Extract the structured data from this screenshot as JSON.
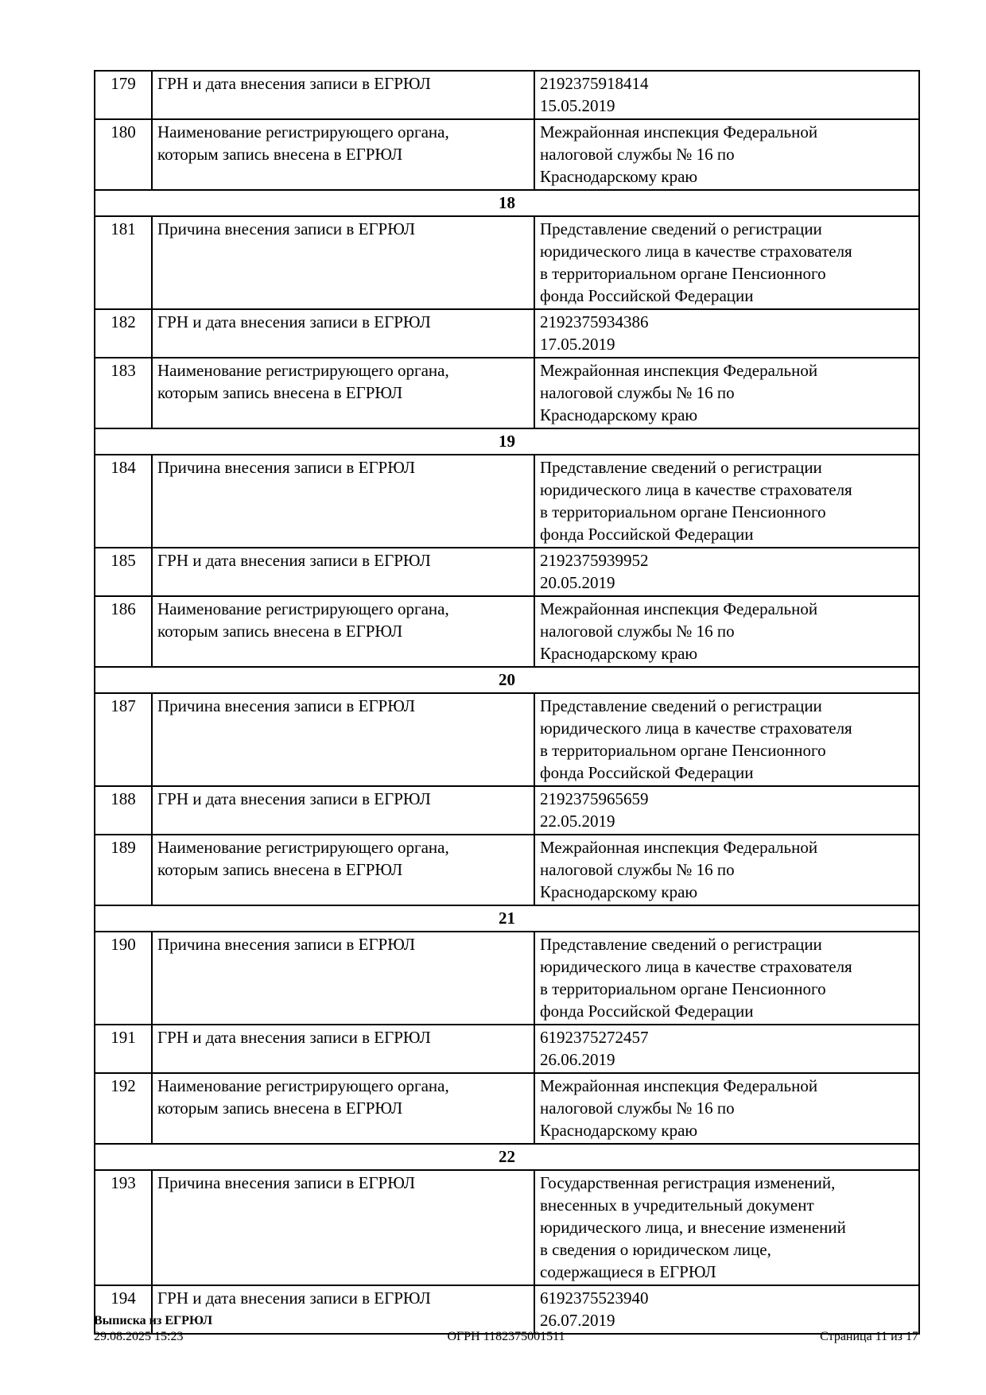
{
  "page": {
    "background_color": "#ffffff",
    "text_color": "#000000",
    "border_color": "#000000"
  },
  "table": {
    "rows": [
      {
        "type": "data",
        "num": "179",
        "label": "ГРН и дата внесения записи в ЕГРЮЛ",
        "value": "2192375918414\n15.05.2019"
      },
      {
        "type": "data",
        "num": "180",
        "label": "Наименование регистрирующего органа,\nкоторым запись внесена в ЕГРЮЛ",
        "value": "Межрайонная инспекция Федеральной\nналоговой службы № 16 по\nКраснодарскому краю"
      },
      {
        "type": "section",
        "label": "18"
      },
      {
        "type": "data",
        "num": "181",
        "label": "Причина внесения записи в ЕГРЮЛ",
        "value": "Представление сведений о регистрации\nюридического лица в качестве страхователя\nв территориальном органе Пенсионного\nфонда Российской Федерации"
      },
      {
        "type": "data",
        "num": "182",
        "label": "ГРН и дата внесения записи в ЕГРЮЛ",
        "value": "2192375934386\n17.05.2019"
      },
      {
        "type": "data",
        "num": "183",
        "label": "Наименование регистрирующего органа,\nкоторым запись внесена в ЕГРЮЛ",
        "value": "Межрайонная инспекция Федеральной\nналоговой службы № 16 по\nКраснодарскому краю"
      },
      {
        "type": "section",
        "label": "19"
      },
      {
        "type": "data",
        "num": "184",
        "label": "Причина внесения записи в ЕГРЮЛ",
        "value": "Представление сведений о регистрации\nюридического лица в качестве страхователя\nв территориальном органе Пенсионного\nфонда Российской Федерации"
      },
      {
        "type": "data",
        "num": "185",
        "label": "ГРН и дата внесения записи в ЕГРЮЛ",
        "value": "2192375939952\n20.05.2019"
      },
      {
        "type": "data",
        "num": "186",
        "label": "Наименование регистрирующего органа,\nкоторым запись внесена в ЕГРЮЛ",
        "value": "Межрайонная инспекция Федеральной\nналоговой службы № 16 по\nКраснодарскому краю"
      },
      {
        "type": "section",
        "label": "20"
      },
      {
        "type": "data",
        "num": "187",
        "label": "Причина внесения записи в ЕГРЮЛ",
        "value": "Представление сведений о регистрации\nюридического лица в качестве страхователя\nв территориальном органе Пенсионного\nфонда Российской Федерации"
      },
      {
        "type": "data",
        "num": "188",
        "label": "ГРН и дата внесения записи в ЕГРЮЛ",
        "value": "2192375965659\n22.05.2019"
      },
      {
        "type": "data",
        "num": "189",
        "label": "Наименование регистрирующего органа,\nкоторым запись внесена в ЕГРЮЛ",
        "value": "Межрайонная инспекция Федеральной\nналоговой службы № 16 по\nКраснодарскому краю"
      },
      {
        "type": "section",
        "label": "21"
      },
      {
        "type": "data",
        "num": "190",
        "label": "Причина внесения записи в ЕГРЮЛ",
        "value": "Представление сведений о регистрации\nюридического лица в качестве страхователя\nв территориальном органе Пенсионного\nфонда Российской Федерации"
      },
      {
        "type": "data",
        "num": "191",
        "label": "ГРН и дата внесения записи в ЕГРЮЛ",
        "value": "6192375272457\n26.06.2019"
      },
      {
        "type": "data",
        "num": "192",
        "label": "Наименование регистрирующего органа,\nкоторым запись внесена в ЕГРЮЛ",
        "value": "Межрайонная инспекция Федеральной\nналоговой службы № 16 по\nКраснодарскому краю"
      },
      {
        "type": "section",
        "label": "22"
      },
      {
        "type": "data",
        "num": "193",
        "label": "Причина внесения записи в ЕГРЮЛ",
        "value": "Государственная регистрация изменений,\nвнесенных в учредительный документ\nюридического лица, и внесение изменений\nв сведения о юридическом лице,\nсодержащиеся в ЕГРЮЛ"
      },
      {
        "type": "data",
        "num": "194",
        "label": "ГРН и дата внесения записи в ЕГРЮЛ",
        "value": "6192375523940\n26.07.2019"
      }
    ]
  },
  "footer": {
    "doc_title": "Выписка из ЕГРЮЛ",
    "generated_datetime": "29.08.2025 15:23",
    "ogrn": "ОГРН 1182375001511",
    "page_info": "Страница 11 из 17"
  }
}
